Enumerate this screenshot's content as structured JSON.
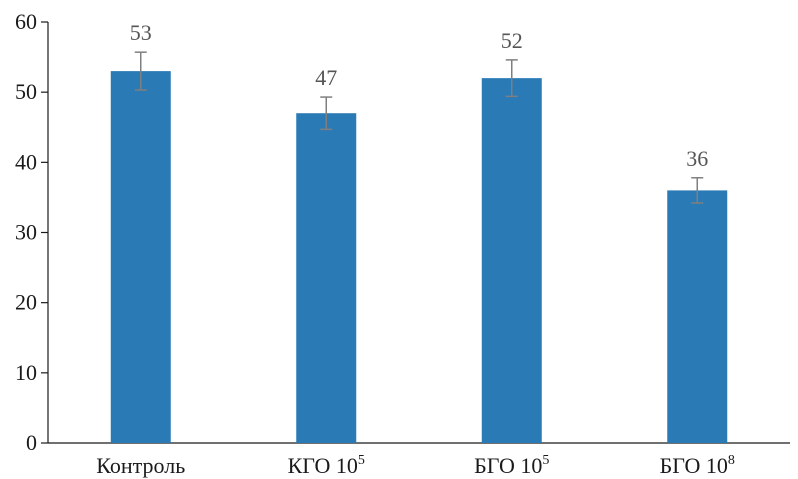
{
  "chart_data": {
    "type": "bar",
    "categories": [
      {
        "base": "Контроль",
        "sup": ""
      },
      {
        "base": "КГО 10",
        "sup": "5"
      },
      {
        "base": "БГО 10",
        "sup": "5"
      },
      {
        "base": "БГО 10",
        "sup": "8"
      }
    ],
    "values": [
      53,
      47,
      52,
      36
    ],
    "errors": [
      2.7,
      2.3,
      2.6,
      1.8
    ],
    "data_labels": [
      "53",
      "47",
      "52",
      "36"
    ],
    "ylim": [
      0,
      60
    ],
    "yticks": [
      0,
      10,
      20,
      30,
      40,
      50,
      60
    ],
    "title": "",
    "xlabel": "",
    "ylabel": "",
    "grid": false,
    "bar_color": "#2a7ab5",
    "error_color": "#7f7f7f"
  }
}
